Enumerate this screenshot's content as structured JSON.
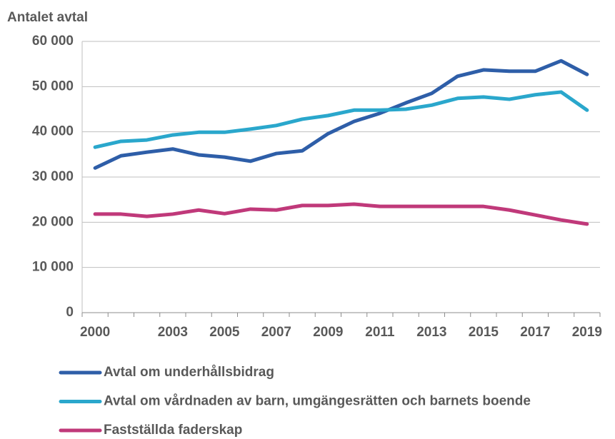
{
  "chart_data": {
    "type": "line",
    "y_axis_label": "Antalet avtal",
    "categories": [
      "2000",
      null,
      null,
      "2003",
      null,
      "2005",
      null,
      "2007",
      null,
      "2009",
      null,
      "2011",
      null,
      "2013",
      null,
      "2015",
      null,
      "2017",
      null,
      "2019"
    ],
    "series": [
      {
        "name": "Avtal om underhållsbidrag",
        "color": "#2e5ea8",
        "values": [
          32000,
          34700,
          35500,
          36200,
          34900,
          34400,
          33500,
          35200,
          35800,
          39600,
          42300,
          44100,
          46400,
          48500,
          52300,
          53700,
          53400,
          53400,
          55700,
          52700
        ]
      },
      {
        "name": "Avtal om vårdnaden av barn, umgängesrätten och barnets boende",
        "color": "#2aa7cc",
        "values": [
          36600,
          37900,
          38200,
          39300,
          39900,
          39900,
          40600,
          41400,
          42800,
          43600,
          44800,
          44800,
          45000,
          45900,
          47400,
          47700,
          47200,
          48200,
          48800,
          44800
        ]
      },
      {
        "name": "Fastställda faderskap",
        "color": "#c0397a",
        "values": [
          21800,
          21800,
          21300,
          21800,
          22700,
          21900,
          22900,
          22700,
          23700,
          23700,
          24000,
          23500,
          23500,
          23500,
          23500,
          23500,
          22700,
          21600,
          20500,
          19600
        ]
      }
    ],
    "ylim": [
      0,
      60000
    ],
    "yticks": [
      0,
      {
        "value": 10000,
        "label": "10 000"
      },
      {
        "value": 20000,
        "label": "20 000"
      },
      {
        "value": 30000,
        "label": "30 000"
      },
      {
        "value": 40000,
        "label": "40 000"
      },
      {
        "value": 50000,
        "label": "50 000"
      },
      {
        "value": 60000,
        "label": "60 000"
      }
    ],
    "grid": true
  }
}
